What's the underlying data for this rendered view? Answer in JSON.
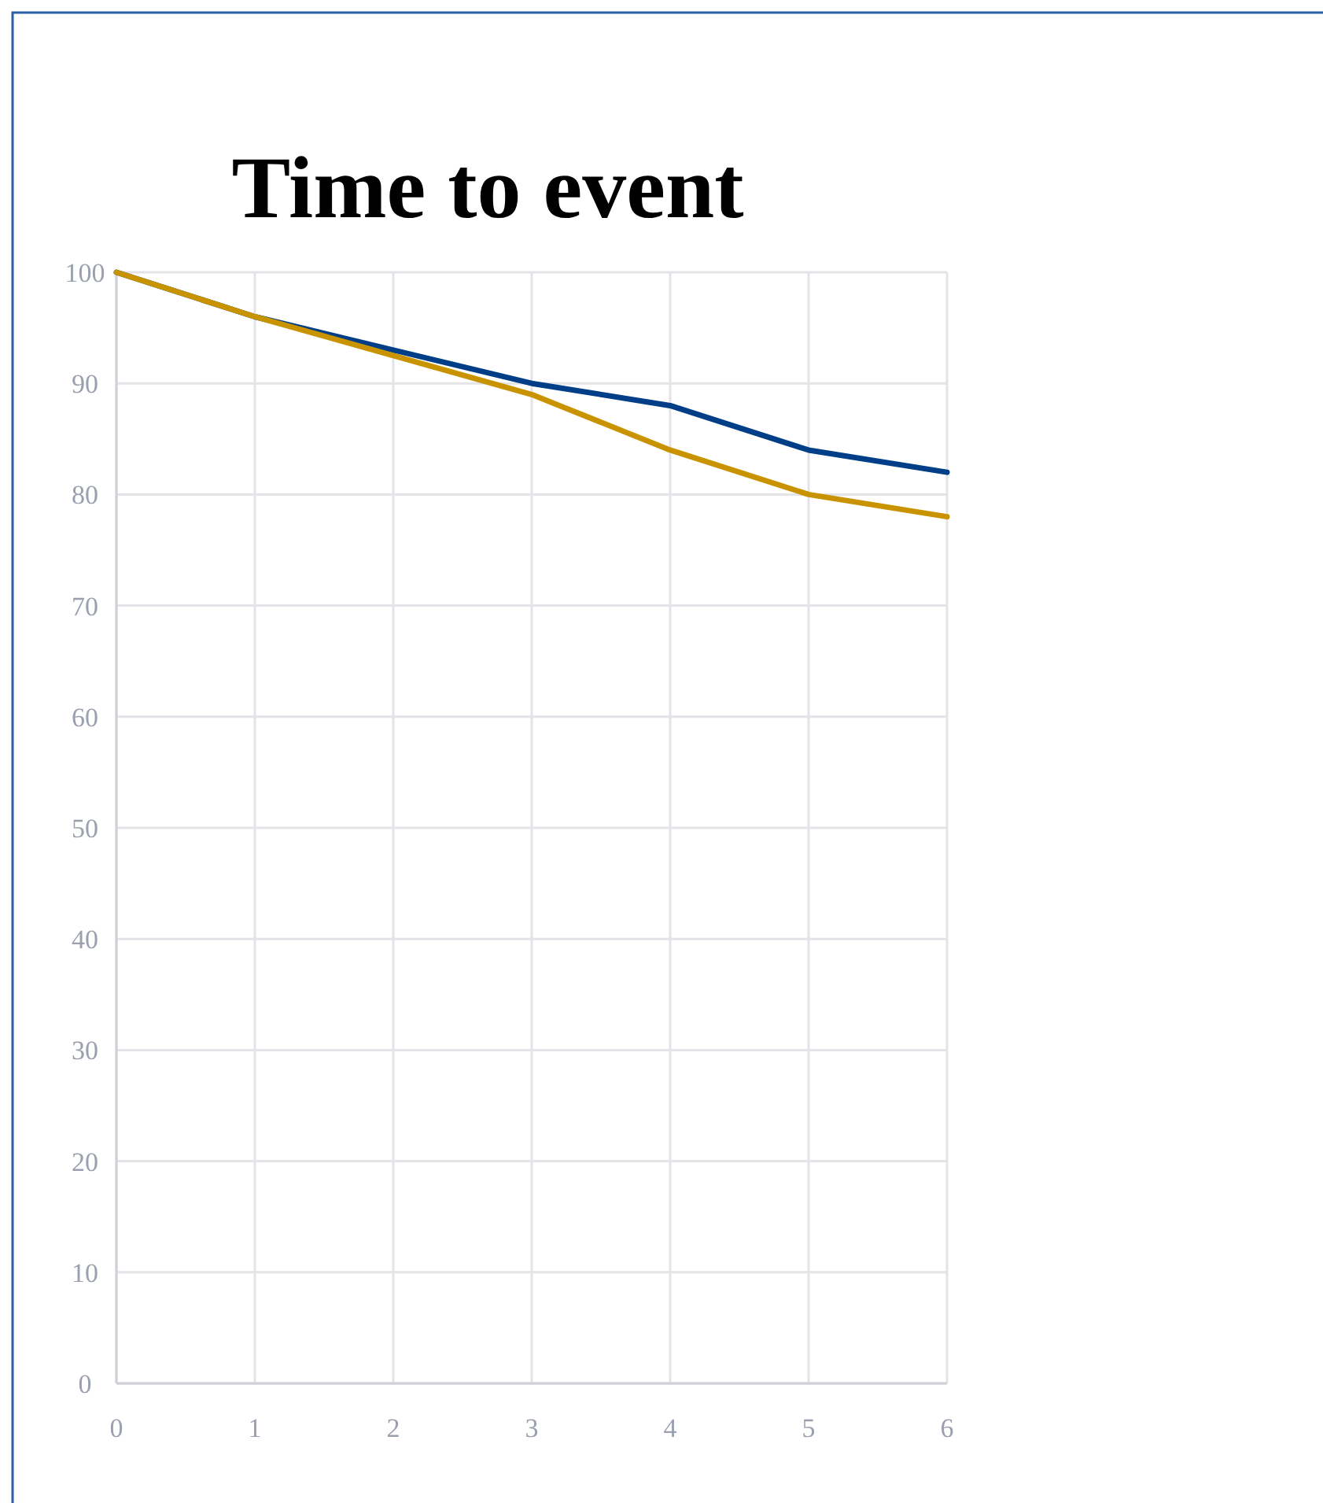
{
  "chart_data": {
    "type": "line",
    "title": "Time to event",
    "x": [
      0,
      1,
      2,
      3,
      4,
      5,
      6
    ],
    "series": [
      {
        "color": "#003f87",
        "values": [
          100,
          96,
          93,
          90,
          88,
          84,
          82
        ]
      },
      {
        "color": "#c99300",
        "values": [
          100,
          96,
          92.5,
          89,
          84,
          80,
          78
        ]
      }
    ],
    "xlim": [
      0,
      6
    ],
    "xticks": [
      0,
      1,
      2,
      3,
      4,
      5,
      6
    ],
    "ylim": [
      0,
      100
    ],
    "yticks": [
      0,
      10,
      20,
      30,
      40,
      50,
      60,
      70,
      80,
      90,
      100
    ],
    "grid": true,
    "marker": "none",
    "line_style": "solid"
  }
}
